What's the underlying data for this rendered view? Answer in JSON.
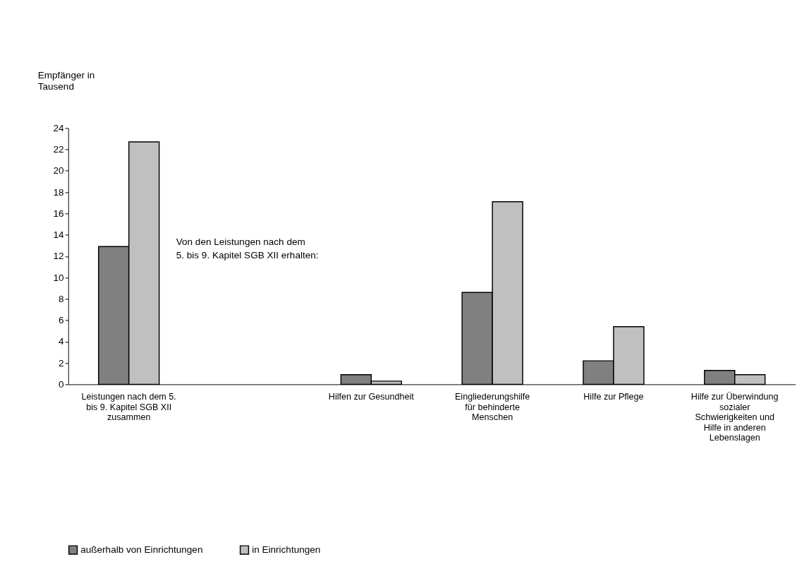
{
  "chart_data": {
    "type": "bar",
    "ylabel": "Empfänger in Tausend",
    "categories": [
      "Leistungen nach dem 5. bis 9. Kapitel SGB XII zusammen",
      null,
      "Hilfen zur Gesundheit",
      "Eingliederungshilfe für behinderte Menschen",
      "Hilfe zur Pflege",
      "Hilfe zur Überwindung sozialer Schwierigkeiten und Hilfe in anderen Lebenslagen"
    ],
    "series": [
      {
        "name": "außerhalb von Einrichtungen",
        "color": "#808080",
        "values": [
          12.9,
          null,
          0.9,
          8.6,
          2.2,
          1.3
        ]
      },
      {
        "name": "in Einrichtungen",
        "color": "#c0c0c0",
        "values": [
          22.7,
          null,
          0.3,
          17.1,
          5.4,
          0.9
        ]
      }
    ],
    "ylim": [
      0,
      24
    ],
    "yticks": [
      0,
      2,
      4,
      6,
      8,
      10,
      12,
      14,
      16,
      18,
      20,
      22,
      24
    ],
    "annotations": [
      "Von den Leistungen nach dem\n5. bis 9. Kapitel SGB XII erhalten:"
    ],
    "grid": false,
    "legend": "bottom"
  }
}
